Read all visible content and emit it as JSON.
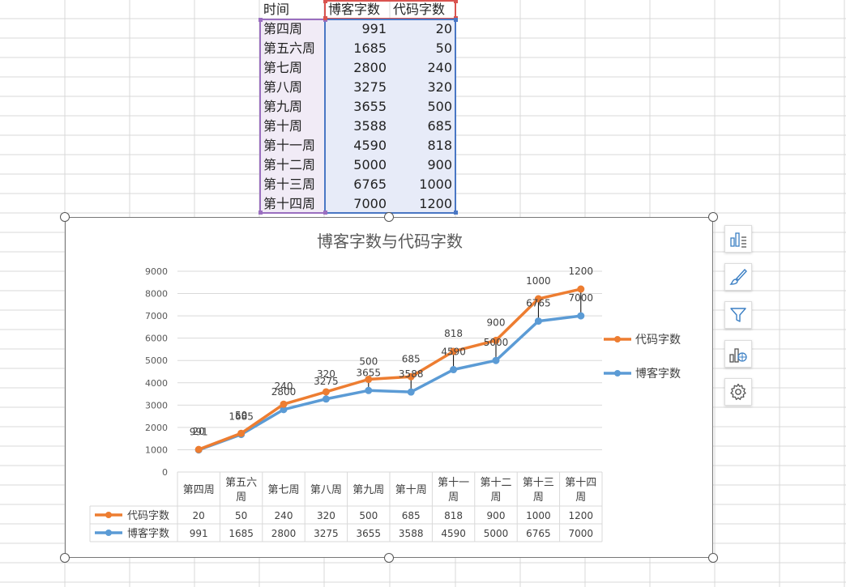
{
  "sheet": {
    "headers": [
      "时间",
      "博客字数",
      "代码字数"
    ],
    "rows": [
      {
        "week": "第四周",
        "blog": "991",
        "code": "20"
      },
      {
        "week": "第五六周",
        "blog": "1685",
        "code": "50"
      },
      {
        "week": "第七周",
        "blog": "2800",
        "code": "240"
      },
      {
        "week": "第八周",
        "blog": "3275",
        "code": "320"
      },
      {
        "week": "第九周",
        "blog": "3655",
        "code": "500"
      },
      {
        "week": "第十周",
        "blog": "3588",
        "code": "685"
      },
      {
        "week": "第十一周",
        "blog": "4590",
        "code": "818"
      },
      {
        "week": "第十二周",
        "blog": "5000",
        "code": "900"
      },
      {
        "week": "第十三周",
        "blog": "6765",
        "code": "1000"
      },
      {
        "week": "第十四周",
        "blog": "7000",
        "code": "1200"
      }
    ]
  },
  "chart_data": {
    "type": "line",
    "stacked": true,
    "title": "博客字数与代码字数",
    "xlabel": "",
    "ylabel": "",
    "categories": [
      "第四周",
      "第五六周",
      "第七周",
      "第八周",
      "第九周",
      "第十周",
      "第十一周",
      "第十二周",
      "第十三周",
      "第十四周"
    ],
    "category_display": [
      [
        "第四周"
      ],
      [
        "第五六",
        "周"
      ],
      [
        "第七周"
      ],
      [
        "第八周"
      ],
      [
        "第九周"
      ],
      [
        "第十周"
      ],
      [
        "第十一",
        "周"
      ],
      [
        "第十二",
        "周"
      ],
      [
        "第十三",
        "周"
      ],
      [
        "第十四",
        "周"
      ]
    ],
    "series": [
      {
        "name": "博客字数",
        "values": [
          991,
          1685,
          2800,
          3275,
          3655,
          3588,
          4590,
          5000,
          6765,
          7000
        ],
        "color": "#5b9bd5"
      },
      {
        "name": "代码字数",
        "values": [
          20,
          50,
          240,
          320,
          500,
          685,
          818,
          900,
          1000,
          1200
        ],
        "color": "#ed7d31"
      }
    ],
    "yticks": [
      0,
      1000,
      2000,
      3000,
      4000,
      5000,
      6000,
      7000,
      8000,
      9000
    ],
    "ylim": [
      0,
      9000
    ],
    "grid": true,
    "legend_position": "right",
    "data_table": true
  },
  "side_toolbar": {
    "icons": [
      "chart-elements-icon",
      "chart-style-icon",
      "chart-filter-icon",
      "chart-type-icon",
      "chart-settings-icon"
    ]
  }
}
